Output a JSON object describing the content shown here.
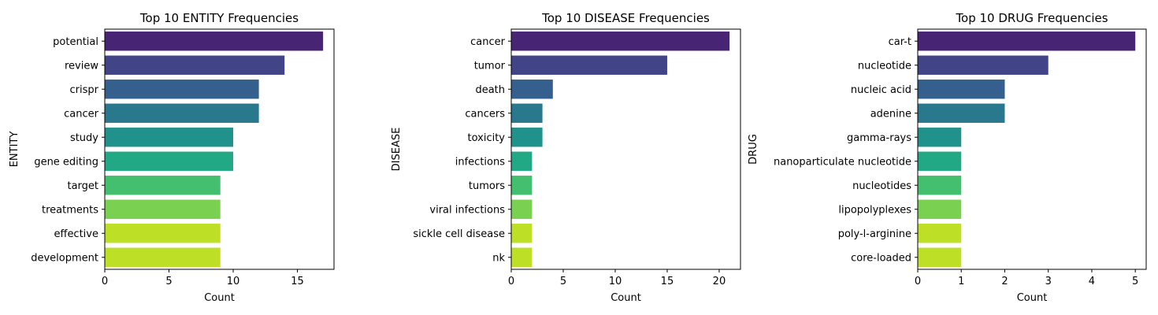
{
  "chart_data": [
    {
      "type": "bar",
      "orientation": "horizontal",
      "title": "Top 10 ENTITY Frequencies",
      "xlabel": "Count",
      "ylabel": "ENTITY",
      "xlim": [
        0,
        17.85
      ],
      "xticks": [
        0,
        5,
        10,
        15
      ],
      "categories": [
        "potential",
        "review",
        "crispr",
        "cancer",
        "study",
        "gene editing",
        "target",
        "treatments",
        "effective",
        "development"
      ],
      "values": [
        17,
        14,
        12,
        12,
        10,
        10,
        9,
        9,
        9,
        9
      ]
    },
    {
      "type": "bar",
      "orientation": "horizontal",
      "title": "Top 10 DISEASE Frequencies",
      "xlabel": "Count",
      "ylabel": "DISEASE",
      "xlim": [
        0,
        22.05
      ],
      "xticks": [
        0,
        5,
        10,
        15,
        20
      ],
      "categories": [
        "cancer",
        "tumor",
        "death",
        "cancers",
        "toxicity",
        "infections",
        "tumors",
        "viral infections",
        "sickle cell disease",
        "nk"
      ],
      "values": [
        21,
        15,
        4,
        3,
        3,
        2,
        2,
        2,
        2,
        2
      ]
    },
    {
      "type": "bar",
      "orientation": "horizontal",
      "title": "Top 10 DRUG Frequencies",
      "xlabel": "Count",
      "ylabel": "DRUG",
      "xlim": [
        0,
        5.25
      ],
      "xticks": [
        0,
        1,
        2,
        3,
        4,
        5
      ],
      "categories": [
        "car-t",
        "nucleotide",
        "nucleic acid",
        "adenine",
        "gamma-rays",
        "nanoparticulate nucleotide",
        "nucleotides",
        "lipopolyplexes",
        "poly-l-arginine",
        "core-loaded"
      ],
      "values": [
        5,
        3,
        2,
        2,
        1,
        1,
        1,
        1,
        1,
        1
      ]
    }
  ],
  "colors": {
    "palette": [
      "#482475",
      "#414487",
      "#355f8d",
      "#2a788e",
      "#21918c",
      "#22a884",
      "#44bf70",
      "#7ad151",
      "#bddf26",
      "#bddf26"
    ],
    "palette_viridis10": [
      "#482475",
      "#414487",
      "#355f8d",
      "#2a788e",
      "#21918c",
      "#22a884",
      "#44bf70",
      "#7ad151",
      "#bddf26",
      "#bddf26"
    ]
  }
}
